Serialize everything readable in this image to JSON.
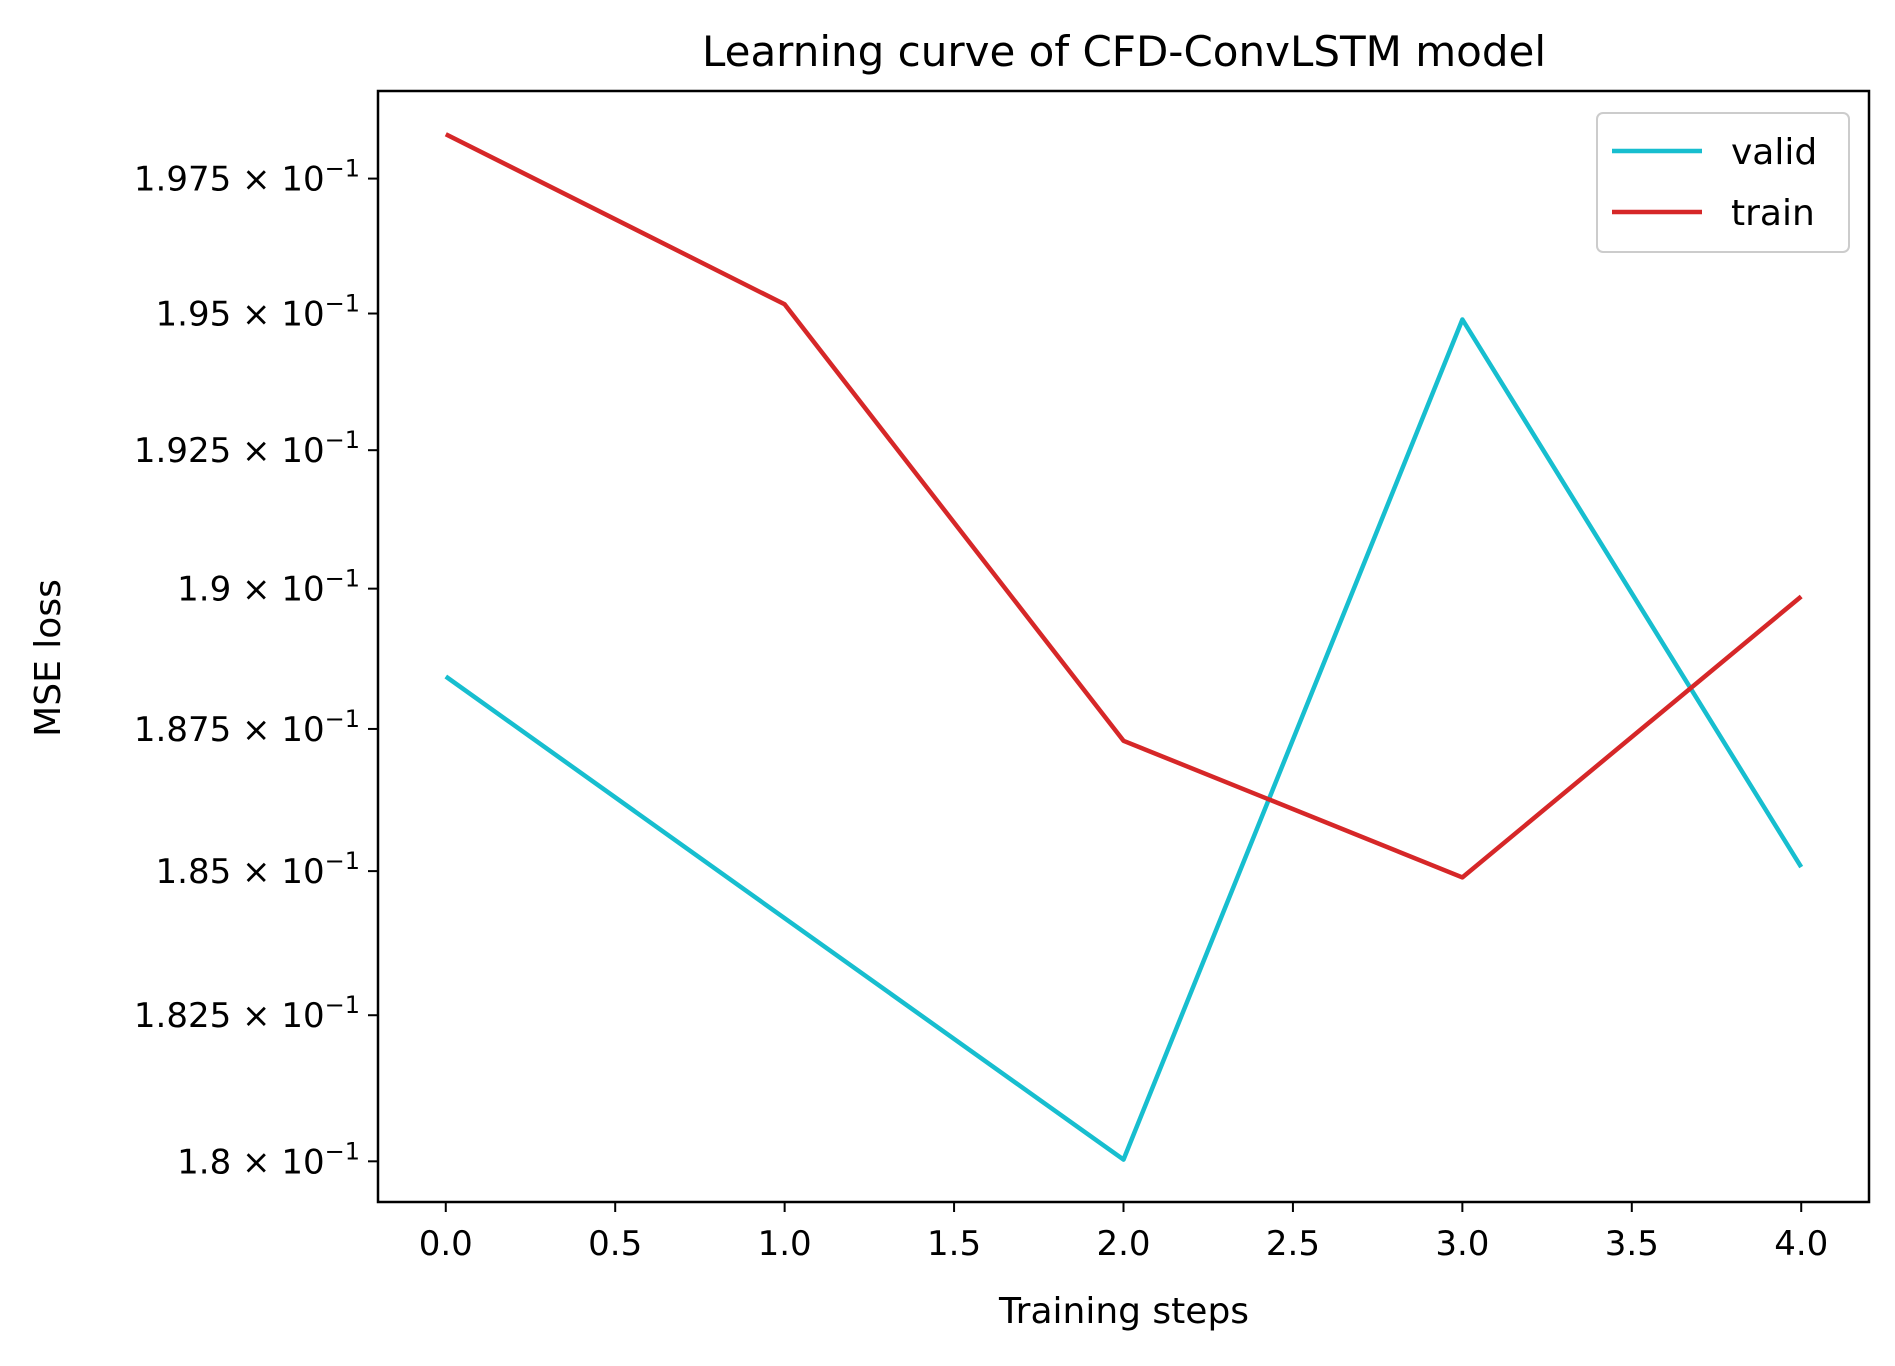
{
  "chart_data": {
    "type": "line",
    "title": "Learning curve of CFD-ConvLSTM model",
    "xlabel": "Training steps",
    "ylabel": "MSE loss",
    "x": [
      0,
      1,
      2,
      3,
      4
    ],
    "xlim": [
      -0.2,
      4.2
    ],
    "ylim": [
      0.17931,
      0.19914
    ],
    "yscale": "log",
    "xticks": [
      "0.0",
      "0.5",
      "1.0",
      "1.5",
      "2.0",
      "2.5",
      "3.0",
      "3.5",
      "4.0"
    ],
    "yticks": [
      {
        "value": 0.18,
        "mantissa": "1.8"
      },
      {
        "value": 0.1825,
        "mantissa": "1.825"
      },
      {
        "value": 0.185,
        "mantissa": "1.85"
      },
      {
        "value": 0.1875,
        "mantissa": "1.875"
      },
      {
        "value": 0.19,
        "mantissa": "1.9"
      },
      {
        "value": 0.1925,
        "mantissa": "1.925"
      },
      {
        "value": 0.195,
        "mantissa": "1.95"
      },
      {
        "value": 0.1975,
        "mantissa": "1.975"
      }
    ],
    "ytick_suffix": "× 10",
    "ytick_exponent": "−1",
    "series": [
      {
        "name": "valid",
        "color": "#17becf",
        "values": [
          0.18843,
          0.18418,
          0.18003,
          0.19489,
          0.18507
        ]
      },
      {
        "name": "train",
        "color": "#d62728",
        "values": [
          0.19833,
          0.19517,
          0.18729,
          0.18489,
          0.18986
        ]
      }
    ],
    "grid": false,
    "legend": "top-right"
  }
}
